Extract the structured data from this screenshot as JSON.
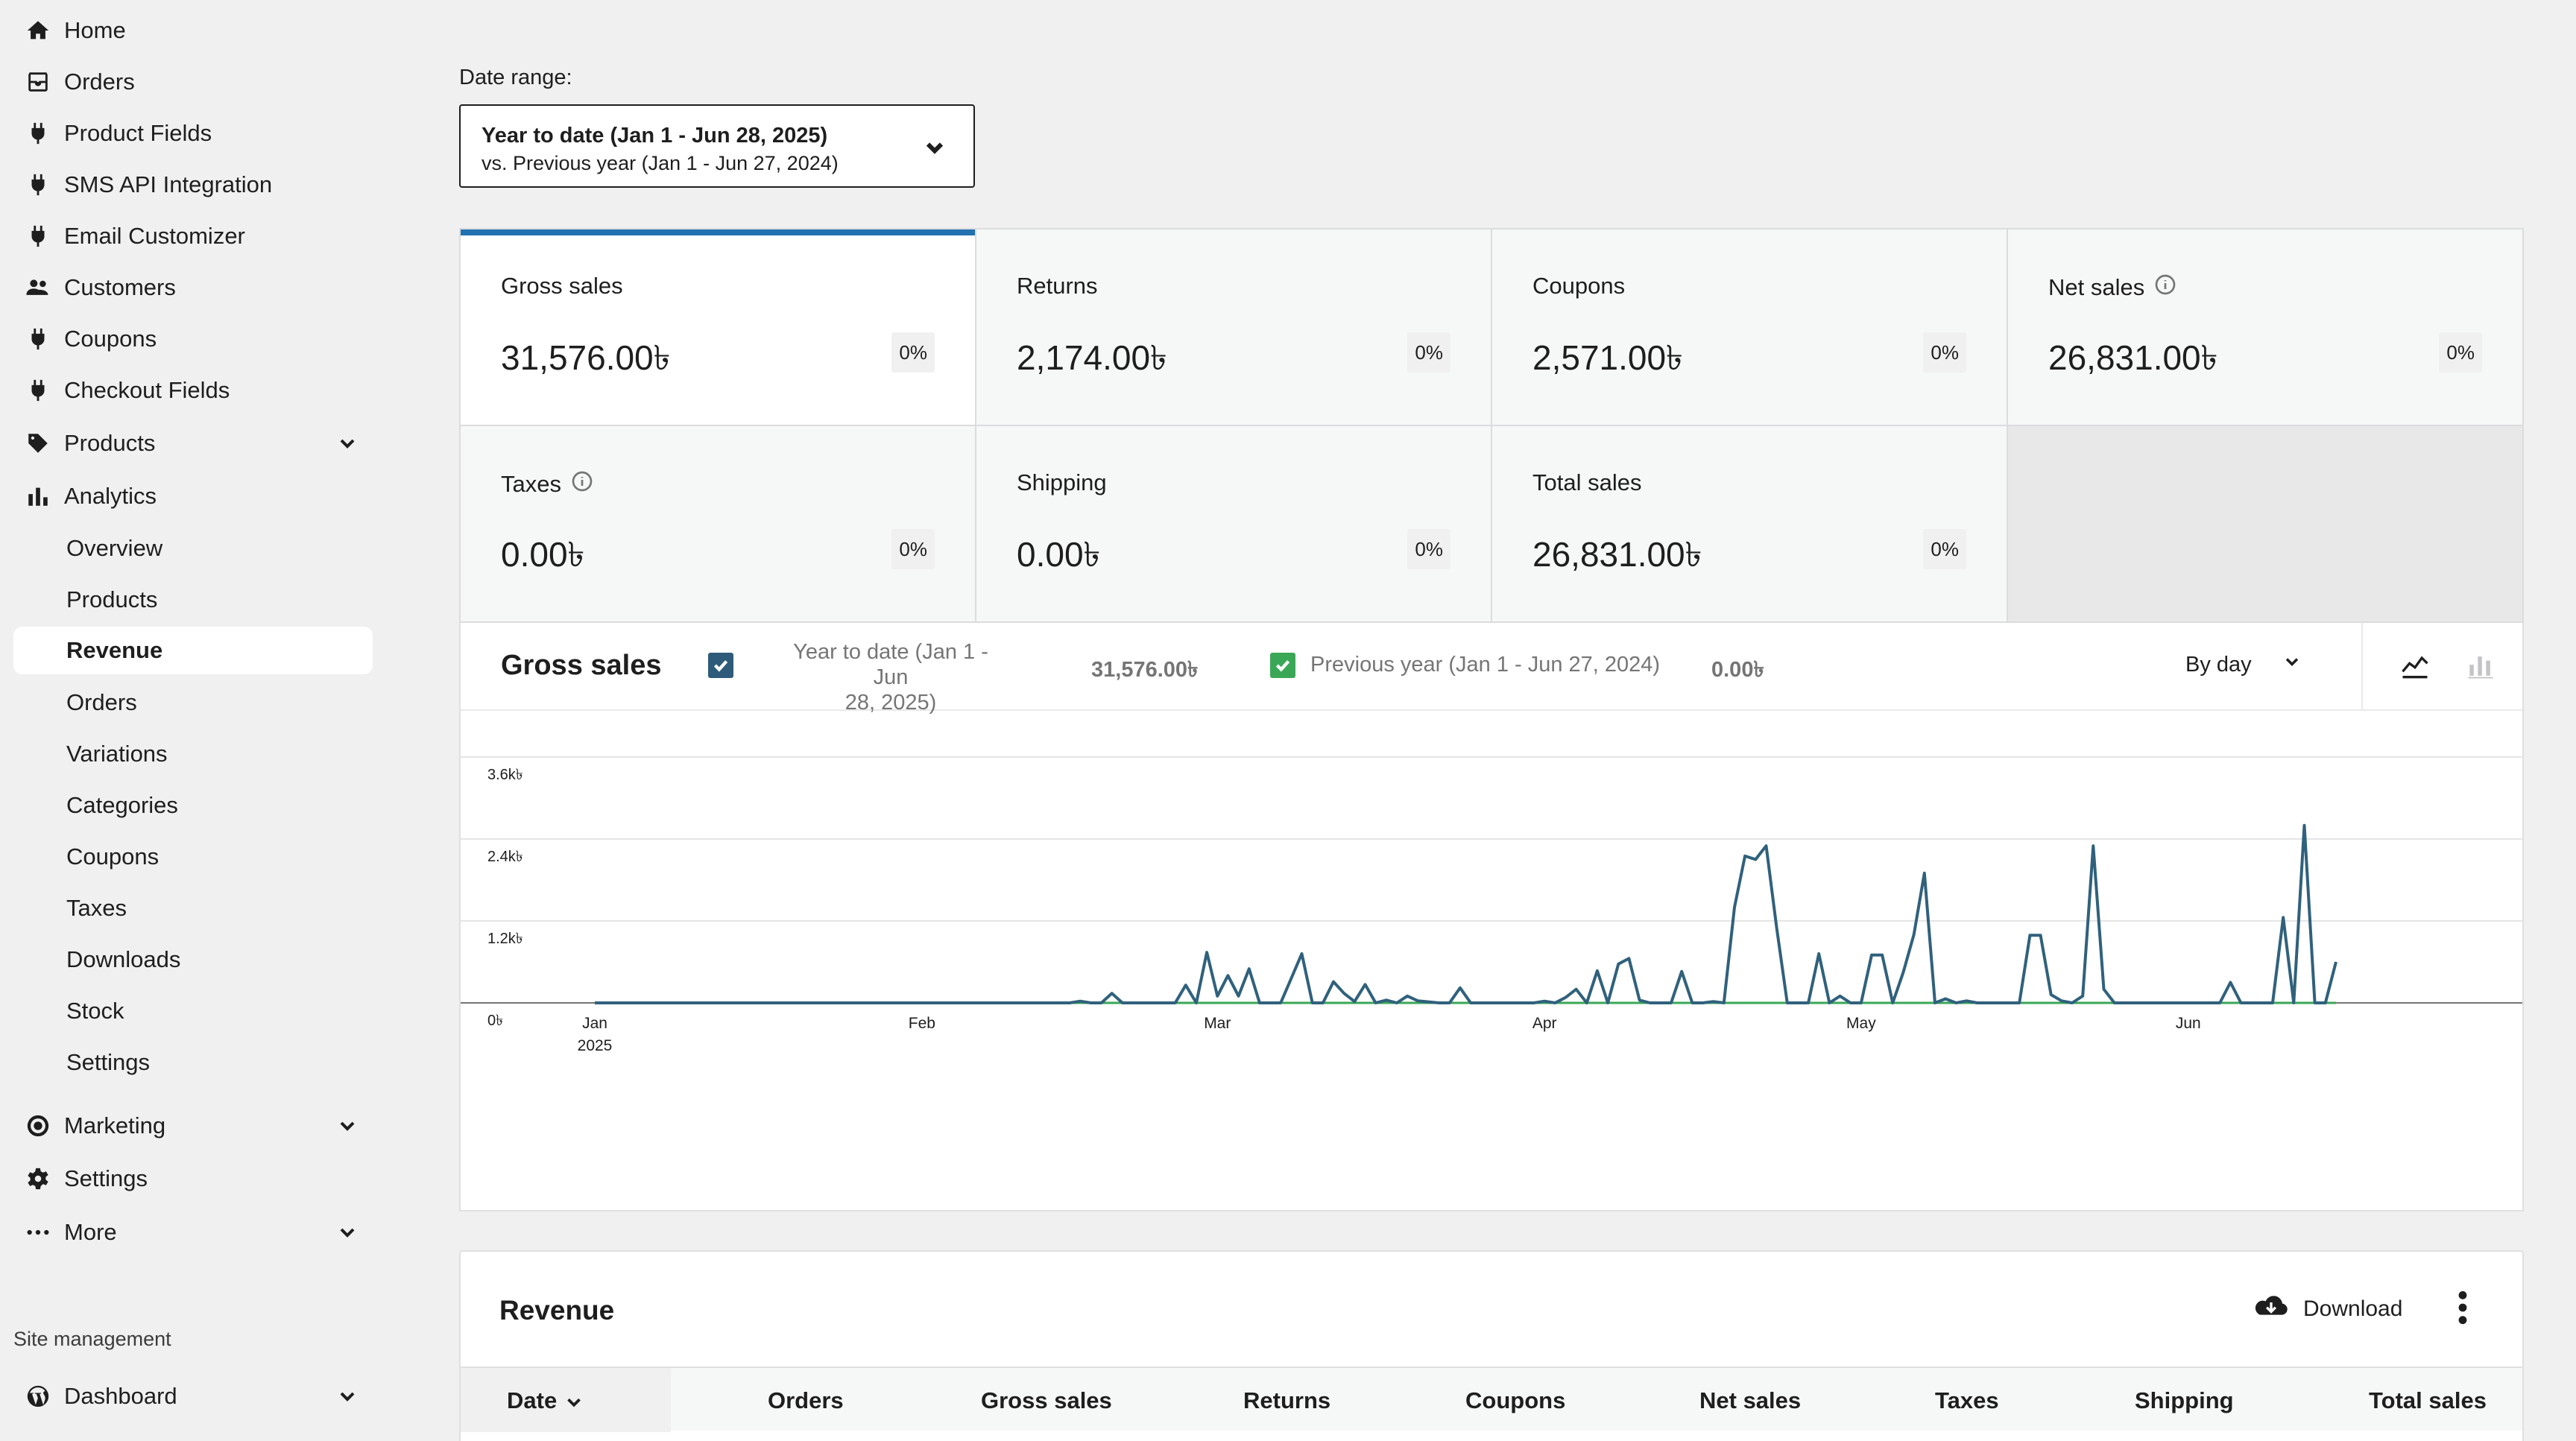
{
  "sidebar": {
    "items": [
      {
        "label": "Home",
        "icon": "home-icon"
      },
      {
        "label": "Orders",
        "icon": "inbox-icon"
      },
      {
        "label": "Product Fields",
        "icon": "plugin-icon"
      },
      {
        "label": "SMS API Integration",
        "icon": "plugin-icon"
      },
      {
        "label": "Email Customizer",
        "icon": "plugin-icon"
      },
      {
        "label": "Customers",
        "icon": "people-icon"
      },
      {
        "label": "Coupons",
        "icon": "plugin-icon"
      },
      {
        "label": "Checkout Fields",
        "icon": "plugin-icon"
      },
      {
        "label": "Products",
        "icon": "tag-icon"
      },
      {
        "label": "Analytics",
        "icon": "bar-chart-icon"
      }
    ],
    "analytics_sub": [
      "Overview",
      "Products",
      "Revenue",
      "Orders",
      "Variations",
      "Categories",
      "Coupons",
      "Taxes",
      "Downloads",
      "Stock",
      "Settings"
    ],
    "active_sub": "Revenue",
    "bottom_items": [
      {
        "label": "Marketing",
        "icon": "target-icon"
      },
      {
        "label": "Settings",
        "icon": "gear-icon"
      },
      {
        "label": "More",
        "icon": "ellipsis-icon"
      }
    ],
    "site_management": "Site management",
    "dashboard": {
      "label": "Dashboard",
      "icon": "wordpress-icon"
    }
  },
  "date_range": {
    "label": "Date range:",
    "primary": "Year to date (Jan 1 - Jun 28, 2025)",
    "compare": "vs. Previous year (Jan 1 - Jun 27, 2024)"
  },
  "summary": [
    {
      "label": "Gross sales",
      "value": "31,576.00৳",
      "delta": "0%",
      "info": false
    },
    {
      "label": "Returns",
      "value": "2,174.00৳",
      "delta": "0%",
      "info": false
    },
    {
      "label": "Coupons",
      "value": "2,571.00৳",
      "delta": "0%",
      "info": false
    },
    {
      "label": "Net sales",
      "value": "26,831.00৳",
      "delta": "0%",
      "info": true
    },
    {
      "label": "Taxes",
      "value": "0.00৳",
      "delta": "0%",
      "info": true
    },
    {
      "label": "Shipping",
      "value": "0.00৳",
      "delta": "0%",
      "info": false
    },
    {
      "label": "Total sales",
      "value": "26,831.00৳",
      "delta": "0%",
      "info": false
    }
  ],
  "chart_header": {
    "title": "Gross sales",
    "current_label": "Year to date (Jan 1 - Jun",
    "current_label2": "28, 2025)",
    "current_value": "31,576.00৳",
    "previous_label": "Previous year (Jan 1 - Jun 27, 2024)",
    "previous_value": "0.00৳",
    "interval": "By day"
  },
  "colors": {
    "accent": "#2271b1",
    "series_current": "#30617c",
    "series_previous": "#3aa757",
    "checkbox_current": "#2e5b7a",
    "checkbox_previous": "#3aa757"
  },
  "chart_data": {
    "type": "line",
    "ylim": [
      0,
      3600
    ],
    "y_ticks": [
      "0৳",
      "1.2k৳",
      "2.4k৳",
      "3.6k৳"
    ],
    "x_ticks": [
      {
        "label": "Jan",
        "sub": "2025",
        "day": 1
      },
      {
        "label": "Feb",
        "sub": "",
        "day": 32
      },
      {
        "label": "Mar",
        "sub": "",
        "day": 60
      },
      {
        "label": "Apr",
        "sub": "",
        "day": 91
      },
      {
        "label": "May",
        "sub": "",
        "day": 121
      },
      {
        "label": "Jun",
        "sub": "",
        "day": 152
      }
    ],
    "x_days": [
      1,
      179
    ],
    "series": [
      {
        "name": "Year to date (Jan 1 - Jun 28, 2025)",
        "points": [
          [
            1,
            0
          ],
          [
            46,
            0
          ],
          [
            47,
            25
          ],
          [
            48,
            0
          ],
          [
            49,
            0
          ],
          [
            50,
            140
          ],
          [
            51,
            0
          ],
          [
            56,
            0
          ],
          [
            57,
            260
          ],
          [
            58,
            0
          ],
          [
            59,
            740
          ],
          [
            60,
            100
          ],
          [
            61,
            400
          ],
          [
            62,
            100
          ],
          [
            63,
            500
          ],
          [
            64,
            0
          ],
          [
            66,
            0
          ],
          [
            67,
            360
          ],
          [
            68,
            720
          ],
          [
            69,
            0
          ],
          [
            70,
            0
          ],
          [
            71,
            310
          ],
          [
            72,
            140
          ],
          [
            73,
            20
          ],
          [
            74,
            270
          ],
          [
            75,
            0
          ],
          [
            76,
            40
          ],
          [
            77,
            0
          ],
          [
            78,
            100
          ],
          [
            79,
            30
          ],
          [
            81,
            0
          ],
          [
            82,
            0
          ],
          [
            83,
            220
          ],
          [
            84,
            0
          ],
          [
            90,
            0
          ],
          [
            91,
            25
          ],
          [
            92,
            0
          ],
          [
            93,
            80
          ],
          [
            94,
            200
          ],
          [
            95,
            0
          ],
          [
            96,
            470
          ],
          [
            97,
            0
          ],
          [
            98,
            570
          ],
          [
            99,
            650
          ],
          [
            100,
            40
          ],
          [
            101,
            0
          ],
          [
            103,
            0
          ],
          [
            104,
            460
          ],
          [
            105,
            0
          ],
          [
            106,
            0
          ],
          [
            107,
            20
          ],
          [
            108,
            0
          ],
          [
            109,
            1400
          ],
          [
            110,
            2150
          ],
          [
            111,
            2100
          ],
          [
            112,
            2300
          ],
          [
            113,
            1100
          ],
          [
            114,
            0
          ],
          [
            116,
            0
          ],
          [
            117,
            720
          ],
          [
            118,
            0
          ],
          [
            119,
            100
          ],
          [
            120,
            0
          ],
          [
            121,
            0
          ],
          [
            122,
            700
          ],
          [
            123,
            700
          ],
          [
            124,
            0
          ],
          [
            125,
            450
          ],
          [
            126,
            1000
          ],
          [
            127,
            1900
          ],
          [
            128,
            0
          ],
          [
            129,
            60
          ],
          [
            130,
            0
          ],
          [
            131,
            30
          ],
          [
            132,
            0
          ],
          [
            136,
            0
          ],
          [
            137,
            990
          ],
          [
            138,
            990
          ],
          [
            139,
            120
          ],
          [
            140,
            30
          ],
          [
            141,
            0
          ],
          [
            142,
            100
          ],
          [
            143,
            2300
          ],
          [
            144,
            200
          ],
          [
            145,
            0
          ],
          [
            155,
            0
          ],
          [
            156,
            300
          ],
          [
            157,
            0
          ],
          [
            160,
            0
          ],
          [
            161,
            1250
          ],
          [
            162,
            0
          ],
          [
            163,
            2600
          ],
          [
            164,
            0
          ],
          [
            165,
            0
          ],
          [
            166,
            600
          ]
        ]
      },
      {
        "name": "Previous year (Jan 1 - Jun 27, 2024)",
        "points": [
          [
            1,
            0
          ],
          [
            166,
            0
          ]
        ]
      }
    ]
  },
  "revenue_table": {
    "title": "Revenue",
    "download": "Download",
    "columns": [
      "Date",
      "Orders",
      "Gross sales",
      "Returns",
      "Coupons",
      "Net sales",
      "Taxes",
      "Shipping",
      "Total sales"
    ]
  }
}
